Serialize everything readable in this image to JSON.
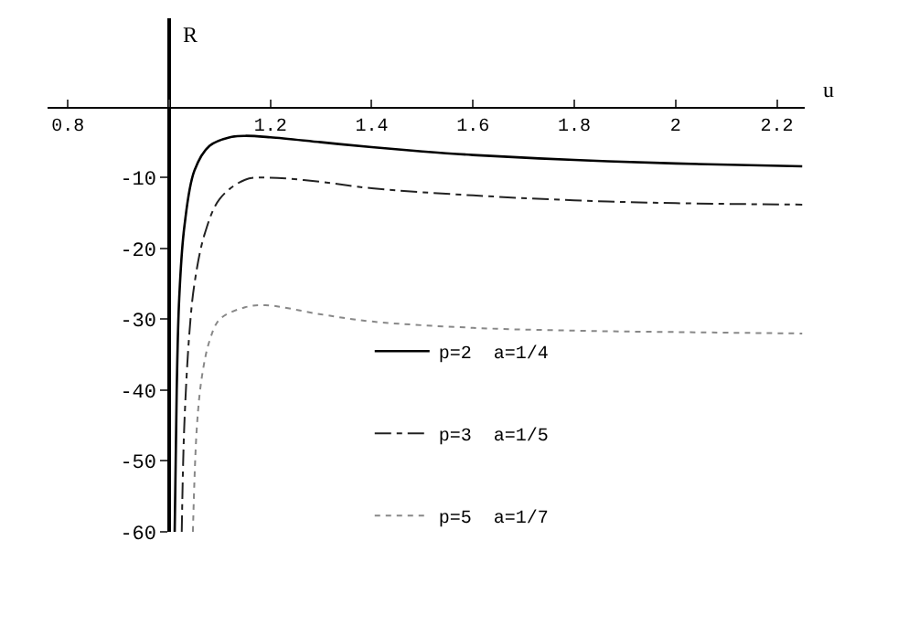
{
  "chart_data": {
    "type": "line",
    "xlabel": "u",
    "ylabel": "R",
    "xlim": [
      0.76,
      2.255
    ],
    "ylim": [
      -60,
      12.5
    ],
    "xticks": [
      0.8,
      {
        "value": 1.0,
        "label": null
      },
      1.2,
      1.4,
      1.6,
      1.8,
      2,
      2.2
    ],
    "yticks": [
      -10,
      -20,
      -30,
      -40,
      -50,
      -60
    ],
    "legend": "bottom",
    "marker": "none",
    "series": [
      {
        "name": "p=2  a=1/4",
        "color": "#000000",
        "line_style": "solid",
        "x": [
          1.011,
          1.015,
          1.02,
          1.03,
          1.05,
          1.08,
          1.12,
          1.15,
          1.2,
          1.3,
          1.4,
          1.5,
          1.6,
          1.8,
          2.0,
          2.25
        ],
        "values": [
          -60,
          -40,
          -27,
          -17,
          -9,
          -5.5,
          -4.3,
          -4.1,
          -4.3,
          -5,
          -5.7,
          -6.3,
          -6.8,
          -7.5,
          -8.0,
          -8.4
        ]
      },
      {
        "name": "p=3  a=1/5",
        "color": "#222222",
        "line_style": "dashdot",
        "x": [
          1.025,
          1.03,
          1.04,
          1.05,
          1.07,
          1.1,
          1.15,
          1.2,
          1.3,
          1.4,
          1.6,
          1.8,
          2.0,
          2.25
        ],
        "values": [
          -60,
          -45,
          -32,
          -25,
          -18,
          -13,
          -10.3,
          -10,
          -10.6,
          -11.5,
          -12.5,
          -13.2,
          -13.6,
          -13.8
        ]
      },
      {
        "name": "p=5  a=1/7",
        "color": "#888888",
        "line_style": "dotted",
        "x": [
          1.047,
          1.055,
          1.065,
          1.08,
          1.1,
          1.15,
          1.19,
          1.3,
          1.4,
          1.6,
          1.8,
          2.0,
          2.25
        ],
        "values": [
          -60,
          -45,
          -38,
          -33,
          -30,
          -28.3,
          -28,
          -29.3,
          -30.3,
          -31.2,
          -31.6,
          -31.8,
          -32
        ]
      }
    ]
  }
}
